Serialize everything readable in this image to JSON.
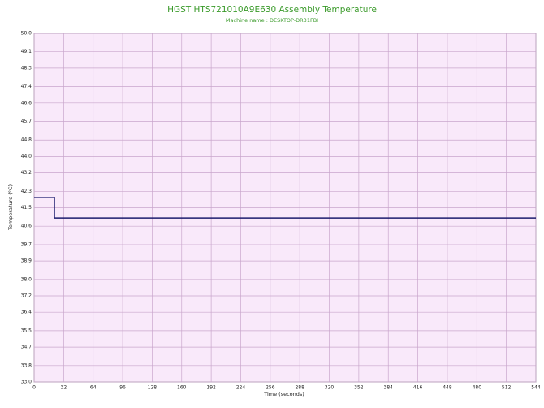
{
  "chart_data": {
    "type": "line",
    "title": "HGST HTS721010A9E630 Assembly Temperature",
    "subtitle": "Machine name : DESKTOP-DR31FBI",
    "x_label": "Time (seconds)",
    "y_label": "Temperature (°C)",
    "x": [
      0,
      22,
      22,
      544
    ],
    "series": [
      {
        "color": "#1c1c6e",
        "values": [
          42.0,
          42.0,
          41.0,
          41.0
        ]
      }
    ],
    "xlim": [
      0,
      544
    ],
    "xticks": [
      0,
      32,
      64,
      96,
      128,
      160,
      192,
      224,
      256,
      288,
      320,
      352,
      384,
      416,
      448,
      480,
      512,
      544
    ],
    "ylim": [
      33,
      50
    ],
    "yticks": [
      {
        "value": 50,
        "label": "50.0"
      },
      49.1,
      48.3,
      47.4,
      46.6,
      45.7,
      44.8,
      {
        "value": 44,
        "label": "44.0"
      },
      43.2,
      42.3,
      41.5,
      40.6,
      39.7,
      38.9,
      {
        "value": 38,
        "label": "38.0"
      },
      37.2,
      36.4,
      35.5,
      34.7,
      33.8,
      {
        "value": 33,
        "label": "33.0"
      }
    ],
    "grid": true
  }
}
